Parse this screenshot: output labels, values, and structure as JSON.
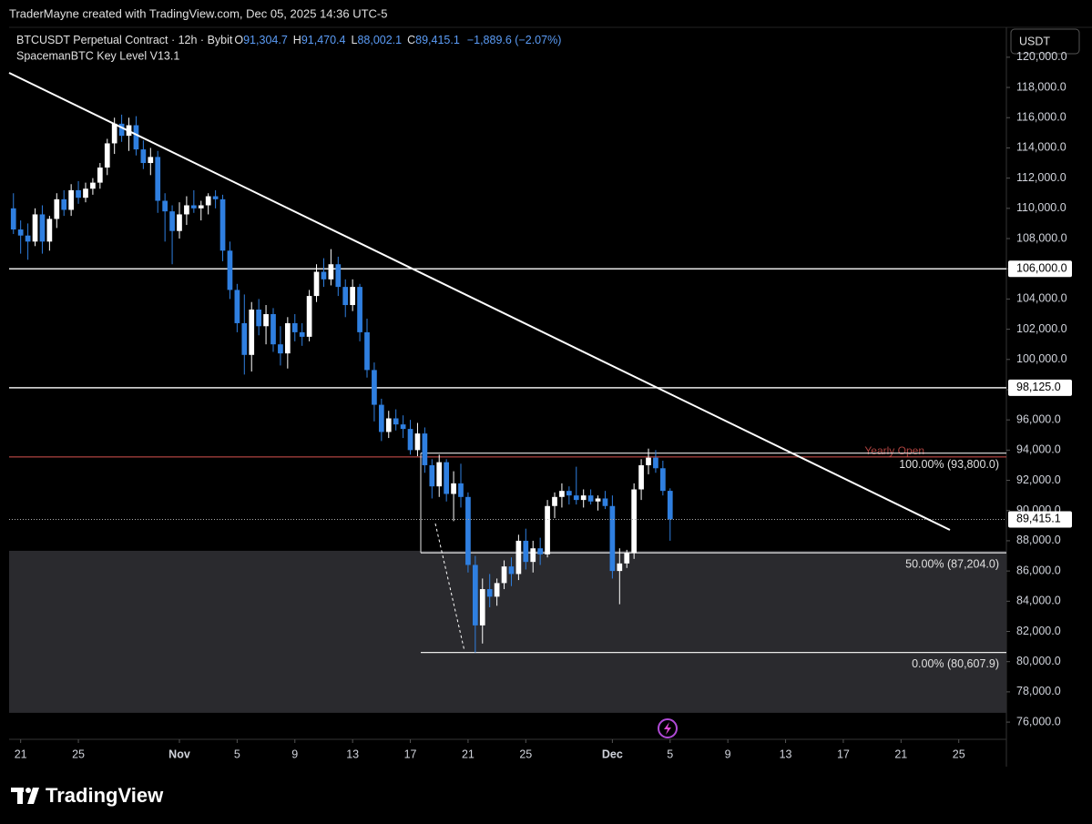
{
  "header": {
    "credit": "TraderMayne created with TradingView.com, Dec 05, 2025 14:36 UTC-5"
  },
  "legend": {
    "symbol": "BTCUSDT Perpetual Contract · 12h · Bybit",
    "fields": [
      {
        "key": "O",
        "value": "91,304.7"
      },
      {
        "key": "H",
        "value": "91,470.4"
      },
      {
        "key": "L",
        "value": "88,002.1"
      },
      {
        "key": "C",
        "value": "89,415.1"
      }
    ],
    "change": "−1,889.6 (−2.07%)",
    "indicator": "SpacemanBTC Key Level V13.1"
  },
  "currency": "USDT",
  "footer": {
    "brand": "TradingView"
  },
  "chart_data": {
    "type": "candlestick",
    "up_color": "#ffffff",
    "down_color": "#2f7fe0",
    "grid": false,
    "ylim": [
      74860,
      121980
    ],
    "yticks": [
      {
        "value": 76000,
        "label": "76,000.0"
      },
      {
        "value": 78000,
        "label": "78,000.0"
      },
      {
        "value": 80000,
        "label": "80,000.0"
      },
      {
        "value": 82000,
        "label": "82,000.0"
      },
      {
        "value": 84000,
        "label": "84,000.0"
      },
      {
        "value": 86000,
        "label": "86,000.0"
      },
      {
        "value": 88000,
        "label": "88,000.0"
      },
      {
        "value": 90000,
        "label": "90,000.0"
      },
      {
        "value": 92000,
        "label": "92,000.0"
      },
      {
        "value": 94000,
        "label": "94,000.0"
      },
      {
        "value": 96000,
        "label": "96,000.0"
      },
      {
        "value": 98000,
        "label": "98,000.0"
      },
      {
        "value": 100000,
        "label": "100,000.0"
      },
      {
        "value": 102000,
        "label": "102,000.0"
      },
      {
        "value": 104000,
        "label": "104,000.0"
      },
      {
        "value": 106000,
        "label": "106,000.0"
      },
      {
        "value": 108000,
        "label": "108,000.0"
      },
      {
        "value": 110000,
        "label": "110,000.0"
      },
      {
        "value": 112000,
        "label": "112,000.0"
      },
      {
        "value": 114000,
        "label": "114,000.0"
      },
      {
        "value": 116000,
        "label": "116,000.0"
      },
      {
        "value": 118000,
        "label": "118,000.0"
      },
      {
        "value": 120000,
        "label": "120,000.0"
      }
    ],
    "xlim": [
      -0.6,
      137.6
    ],
    "xticks": [
      {
        "value": 1,
        "label": "21"
      },
      {
        "value": 9,
        "label": "25"
      },
      {
        "value": 23,
        "label": "Nov"
      },
      {
        "value": 31,
        "label": "5"
      },
      {
        "value": 39,
        "label": "9"
      },
      {
        "value": 47,
        "label": "13"
      },
      {
        "value": 55,
        "label": "17"
      },
      {
        "value": 63,
        "label": "21"
      },
      {
        "value": 71,
        "label": "25"
      },
      {
        "value": 83,
        "label": "Dec"
      },
      {
        "value": 91,
        "label": "5"
      },
      {
        "value": 99,
        "label": "9"
      },
      {
        "value": 107,
        "label": "13"
      },
      {
        "value": 115,
        "label": "17"
      },
      {
        "value": 123,
        "label": "21"
      },
      {
        "value": 131,
        "label": "25"
      }
    ],
    "open": [
      110000,
      108600,
      108200,
      107800,
      109600,
      107800,
      109300,
      110600,
      109900,
      111200,
      110700,
      111300,
      111700,
      112700,
      114300,
      115600,
      114800,
      115500,
      113900,
      113000,
      113400,
      110500,
      109800,
      108500,
      109600,
      110200,
      110000,
      110200,
      110800,
      110600,
      107200,
      104600,
      102400,
      100300,
      103300,
      102200,
      103000,
      101000,
      100400,
      102400,
      101800,
      101500,
      104200,
      105800,
      105300,
      106300,
      104800,
      103600,
      104800,
      101800,
      99300,
      97000,
      95200,
      96100,
      95700,
      95400,
      94000,
      95100,
      93000,
      91600,
      93200,
      91100,
      91800,
      90900,
      86400,
      82400,
      84800,
      84300,
      85200,
      86300,
      85800,
      88000,
      86600,
      87500,
      87100,
      90300,
      90900,
      91300,
      91000,
      90700,
      91000,
      90600,
      90800,
      90300,
      86000,
      86500,
      87200,
      91400,
      93000,
      93500,
      92800,
      91304.7
    ],
    "high": [
      111000,
      109200,
      109000,
      110000,
      110200,
      109500,
      111000,
      111200,
      111600,
      111800,
      111700,
      112000,
      113000,
      114600,
      116000,
      116200,
      116000,
      116100,
      114500,
      114000,
      113800,
      111000,
      110200,
      110400,
      110800,
      111200,
      110500,
      111000,
      111200,
      110900,
      107800,
      105000,
      104300,
      103800,
      104000,
      103600,
      103400,
      102200,
      102800,
      103000,
      102400,
      104600,
      106300,
      106700,
      107300,
      106800,
      105300,
      105300,
      105000,
      102700,
      99800,
      97400,
      96600,
      96700,
      96300,
      96000,
      95800,
      95500,
      93400,
      93700,
      93400,
      92600,
      93100,
      91200,
      87000,
      85500,
      85800,
      85500,
      86700,
      86900,
      88400,
      88800,
      88000,
      88200,
      90700,
      91200,
      91800,
      91600,
      92900,
      91400,
      91400,
      91000,
      91300,
      91000,
      87500,
      87400,
      91800,
      93400,
      94100,
      94000,
      93300,
      91470.4
    ],
    "low": [
      108300,
      107000,
      106600,
      107500,
      107000,
      107200,
      108700,
      109500,
      109500,
      110300,
      110400,
      110900,
      111300,
      112200,
      113600,
      114400,
      113800,
      113500,
      112600,
      112200,
      109700,
      107800,
      106300,
      108000,
      108900,
      109700,
      109200,
      109600,
      110000,
      106500,
      104000,
      101800,
      99000,
      99200,
      101600,
      101000,
      100500,
      99600,
      99400,
      101200,
      100900,
      101200,
      103800,
      104800,
      104900,
      104200,
      102800,
      103200,
      101200,
      98800,
      95900,
      94600,
      94800,
      95300,
      94800,
      93700,
      93600,
      92500,
      90800,
      90900,
      90600,
      89300,
      90200,
      85900,
      80600,
      81200,
      83600,
      83700,
      84800,
      85000,
      85400,
      86100,
      85900,
      86400,
      86900,
      89500,
      90200,
      90400,
      90400,
      90200,
      90400,
      90000,
      90100,
      85500,
      83800,
      86200,
      86800,
      90700,
      92400,
      92500,
      91000,
      88002.1
    ],
    "close": [
      108600,
      108200,
      107800,
      109600,
      107800,
      109300,
      110600,
      109900,
      111200,
      110700,
      111300,
      111700,
      112700,
      114300,
      115600,
      114800,
      115500,
      113900,
      113000,
      113400,
      110500,
      109800,
      108500,
      109600,
      110200,
      110000,
      110200,
      110800,
      110600,
      107200,
      104600,
      102400,
      100300,
      103300,
      102200,
      103000,
      101000,
      100400,
      102400,
      101800,
      101500,
      104200,
      105800,
      105300,
      106300,
      104800,
      103600,
      104800,
      101800,
      99300,
      97000,
      95200,
      96100,
      95700,
      95400,
      94000,
      95100,
      93000,
      91600,
      93200,
      91100,
      91800,
      90900,
      86400,
      82400,
      84800,
      84300,
      85200,
      86300,
      85800,
      88000,
      86600,
      87500,
      87100,
      90300,
      90900,
      91300,
      91000,
      90700,
      91000,
      90600,
      90800,
      90300,
      86000,
      86500,
      87200,
      91400,
      93000,
      93500,
      92800,
      91300,
      89415.1
    ],
    "levels": [
      {
        "value": 106000,
        "label": "106,000.0"
      },
      {
        "value": 98125,
        "label": "98,125.0"
      }
    ],
    "last_price": {
      "value": 89415.1,
      "label": "89,415.1"
    },
    "yearly_open": {
      "value": 93550,
      "label": "Yearly Open"
    },
    "fib": [
      {
        "value": 93800,
        "label": "100.00% (93,800.0)"
      },
      {
        "value": 87204,
        "label": "50.00% (87,204.0)"
      },
      {
        "value": 80607.9,
        "label": "0.00% (80,607.9)"
      }
    ],
    "zone": {
      "low": 76614,
      "high": 87337
    }
  }
}
